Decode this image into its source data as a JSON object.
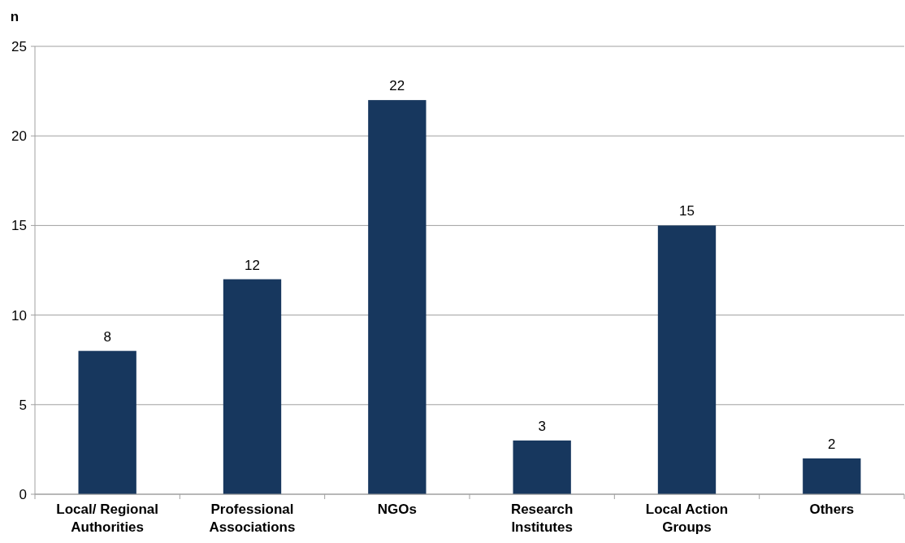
{
  "chart_data": {
    "type": "bar",
    "ylabel": "n",
    "categories": [
      "Local/ Regional Authorities",
      "Professional Associations",
      "NGOs",
      "Research Institutes",
      "Local Action Groups",
      "Others"
    ],
    "values": [
      8,
      12,
      22,
      3,
      15,
      2
    ],
    "color": "#17375e",
    "ylim": [
      0,
      25
    ],
    "yticks": [
      0,
      5,
      10,
      15,
      20,
      25
    ],
    "grid": "y",
    "data_labels": true
  }
}
